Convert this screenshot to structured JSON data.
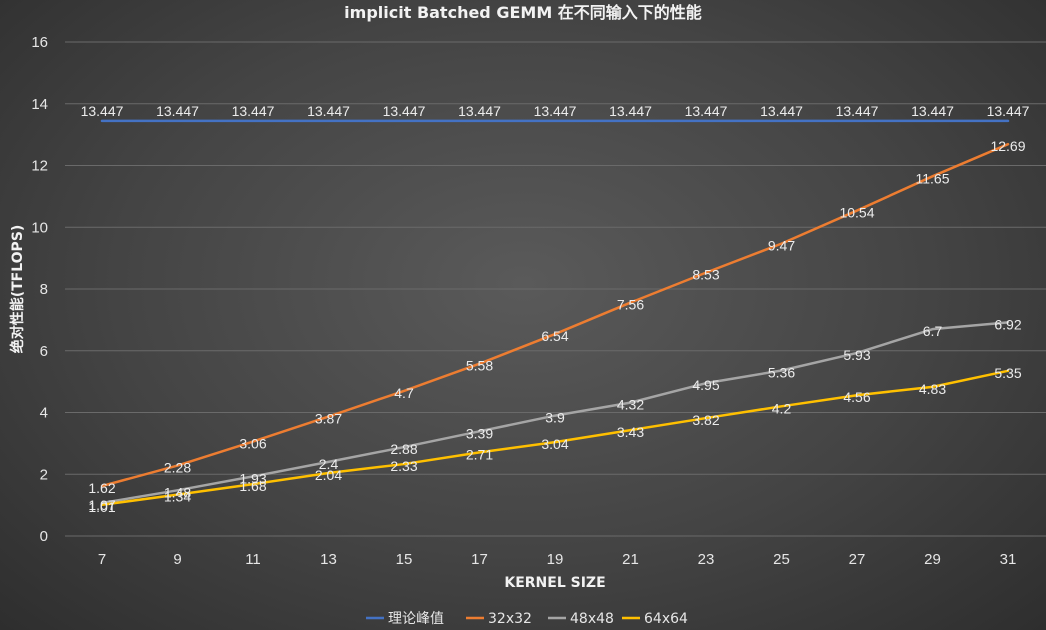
{
  "chart_data": {
    "type": "line",
    "title": "implicit Batched GEMM 在不同输入下的性能",
    "xlabel": "KERNEL SIZE",
    "ylabel": "绝对性能(TFLOPS)",
    "categories": [
      "7",
      "9",
      "11",
      "13",
      "15",
      "17",
      "19",
      "21",
      "23",
      "25",
      "27",
      "29",
      "31"
    ],
    "ylim": [
      0,
      16
    ],
    "yticks": [
      0,
      2,
      4,
      6,
      8,
      10,
      12,
      14,
      16
    ],
    "grid": true,
    "legend_position": "bottom",
    "series": [
      {
        "name": "理论峰值",
        "color": "#4472c4",
        "values": [
          13.447,
          13.447,
          13.447,
          13.447,
          13.447,
          13.447,
          13.447,
          13.447,
          13.447,
          13.447,
          13.447,
          13.447,
          13.447
        ],
        "labels": [
          "13.447",
          "13.447",
          "13.447",
          "13.447",
          "13.447",
          "13.447",
          "13.447",
          "13.447",
          "13.447",
          "13.447",
          "13.447",
          "13.447",
          "13.447"
        ]
      },
      {
        "name": "32x32",
        "color": "#ed7d31",
        "values": [
          1.62,
          2.28,
          3.06,
          3.87,
          4.7,
          5.58,
          6.54,
          7.56,
          8.53,
          9.47,
          10.54,
          11.65,
          12.69
        ],
        "labels": [
          "1.62",
          "2.28",
          "3.06",
          "3.87",
          "4.7",
          "5.58",
          "6.54",
          "7.56",
          "8.53",
          "9.47",
          "10.54",
          "11.65",
          "12.69"
        ]
      },
      {
        "name": "48x48",
        "color": "#a5a5a5",
        "values": [
          1.07,
          1.48,
          1.93,
          2.4,
          2.88,
          3.39,
          3.9,
          4.32,
          4.95,
          5.36,
          5.93,
          6.7,
          6.92
        ],
        "labels": [
          "1.07",
          "1.48",
          "1.93",
          "2.4",
          "2.88",
          "3.39",
          "3.9",
          "4.32",
          "4.95",
          "5.36",
          "5.93",
          "6.7",
          "6.92"
        ]
      },
      {
        "name": "64x64",
        "color": "#ffc000",
        "values": [
          1.01,
          1.34,
          1.68,
          2.04,
          2.33,
          2.71,
          3.04,
          3.43,
          3.82,
          4.2,
          4.56,
          4.83,
          5.35
        ],
        "labels": [
          "1.01",
          "1.34",
          "1.68",
          "2.04",
          "2.33",
          "2.71",
          "3.04",
          "3.43",
          "3.82",
          "4.2",
          "4.56",
          "4.83",
          "5.35"
        ]
      }
    ]
  }
}
